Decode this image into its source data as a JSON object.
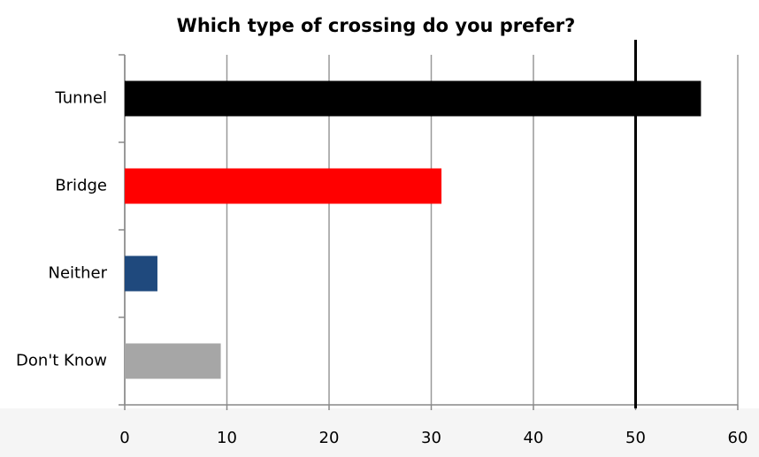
{
  "chart_data": {
    "type": "bar",
    "orientation": "horizontal",
    "title": "Which type of crossing do you prefer?",
    "categories": [
      "Tunnel",
      "Bridge",
      "Neither",
      "Don't Know"
    ],
    "values": [
      56.4,
      31,
      3.2,
      9.4
    ],
    "colors": [
      "#000000",
      "#ff0000",
      "#1f497d",
      "#a6a6a6"
    ],
    "xlim": [
      0,
      60
    ],
    "xticks": [
      0,
      10,
      20,
      30,
      40,
      50,
      60
    ],
    "grid": true,
    "reference_line": 50
  }
}
